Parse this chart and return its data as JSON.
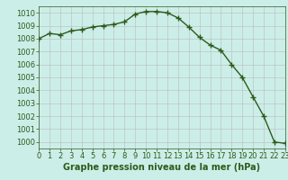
{
  "x": [
    0,
    1,
    2,
    3,
    4,
    5,
    6,
    7,
    8,
    9,
    10,
    11,
    12,
    13,
    14,
    15,
    16,
    17,
    18,
    19,
    20,
    21,
    22,
    23
  ],
  "y": [
    1008.0,
    1008.4,
    1008.3,
    1008.6,
    1008.7,
    1008.9,
    1009.0,
    1009.1,
    1009.3,
    1009.9,
    1010.1,
    1010.1,
    1010.0,
    1009.6,
    1008.9,
    1008.1,
    1007.5,
    1007.1,
    1006.0,
    1005.0,
    1003.5,
    1002.0,
    1000.0,
    999.9
  ],
  "line_color": "#2d5a1b",
  "marker": "+",
  "markersize": 4,
  "linewidth": 1.0,
  "background_color": "#cceee8",
  "grid_color": "#bbbbbb",
  "xlabel": "Graphe pression niveau de la mer (hPa)",
  "xlabel_fontsize": 7,
  "xlabel_fontweight": "bold",
  "tick_fontsize": 6,
  "ylim": [
    999.5,
    1010.5
  ],
  "yticks": [
    1000,
    1001,
    1002,
    1003,
    1004,
    1005,
    1006,
    1007,
    1008,
    1009,
    1010
  ],
  "xticks": [
    0,
    1,
    2,
    3,
    4,
    5,
    6,
    7,
    8,
    9,
    10,
    11,
    12,
    13,
    14,
    15,
    16,
    17,
    18,
    19,
    20,
    21,
    22,
    23
  ],
  "xlim": [
    0,
    23
  ]
}
